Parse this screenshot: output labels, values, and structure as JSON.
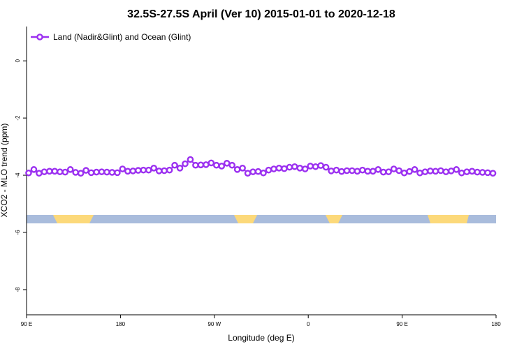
{
  "chart_data": {
    "type": "line",
    "title": "32.5S-27.5S April (Ver 10)   2015-01-01 to 2020-12-18",
    "xlabel": "Longitude (deg E)",
    "ylabel": "XCO2 - MLO trend (ppm)",
    "legend": "top-left",
    "x": [
      92,
      97,
      102,
      107,
      112,
      117,
      122,
      127,
      132,
      137,
      142,
      147,
      152,
      157,
      162,
      167,
      172,
      177,
      182,
      187,
      192,
      197,
      202,
      207,
      212,
      217,
      222,
      227,
      232,
      237,
      242,
      247,
      252,
      257,
      262,
      267,
      272,
      277,
      282,
      287,
      292,
      297,
      302,
      307,
      312,
      317,
      322,
      327,
      332,
      337,
      342,
      347,
      352,
      357,
      362,
      367,
      372,
      377,
      382,
      387,
      392,
      397,
      402,
      407,
      412,
      417,
      422,
      427,
      432,
      437,
      442,
      447,
      452,
      457,
      462,
      467,
      472,
      477,
      482,
      487,
      492,
      497,
      502,
      507,
      512,
      517,
      522,
      527,
      532,
      537
    ],
    "series": [
      {
        "name": "Land (Nadir&Glint) and Ocean (Glint)",
        "color": "#9b30f0",
        "values": [
          -3.92,
          -3.8,
          -3.93,
          -3.88,
          -3.86,
          -3.86,
          -3.88,
          -3.89,
          -3.8,
          -3.9,
          -3.93,
          -3.83,
          -3.91,
          -3.89,
          -3.88,
          -3.89,
          -3.9,
          -3.91,
          -3.78,
          -3.86,
          -3.85,
          -3.83,
          -3.82,
          -3.82,
          -3.75,
          -3.85,
          -3.84,
          -3.82,
          -3.65,
          -3.75,
          -3.6,
          -3.45,
          -3.65,
          -3.64,
          -3.63,
          -3.57,
          -3.65,
          -3.68,
          -3.58,
          -3.65,
          -3.8,
          -3.75,
          -3.93,
          -3.88,
          -3.87,
          -3.92,
          -3.82,
          -3.78,
          -3.75,
          -3.77,
          -3.72,
          -3.7,
          -3.75,
          -3.78,
          -3.68,
          -3.7,
          -3.66,
          -3.72,
          -3.85,
          -3.82,
          -3.87,
          -3.84,
          -3.84,
          -3.86,
          -3.82,
          -3.86,
          -3.86,
          -3.8,
          -3.89,
          -3.88,
          -3.78,
          -3.84,
          -3.92,
          -3.87,
          -3.8,
          -3.92,
          -3.88,
          -3.85,
          -3.86,
          -3.84,
          -3.88,
          -3.85,
          -3.8,
          -3.92,
          -3.88,
          -3.86,
          -3.89,
          -3.9,
          -3.91,
          -3.93
        ]
      }
    ],
    "xlim": [
      90,
      540
    ],
    "xticks": [
      {
        "value": 90,
        "label": "90 E"
      },
      180,
      {
        "value": 270,
        "label": "90 W"
      },
      {
        "value": 360,
        "label": "0"
      },
      {
        "value": 450,
        "label": "90 E"
      },
      {
        "value": 540,
        "label": "180"
      }
    ],
    "ylim": [
      -8.88,
      1.2
    ],
    "yticks": [
      0,
      -2,
      -4,
      -6,
      -8
    ]
  }
}
